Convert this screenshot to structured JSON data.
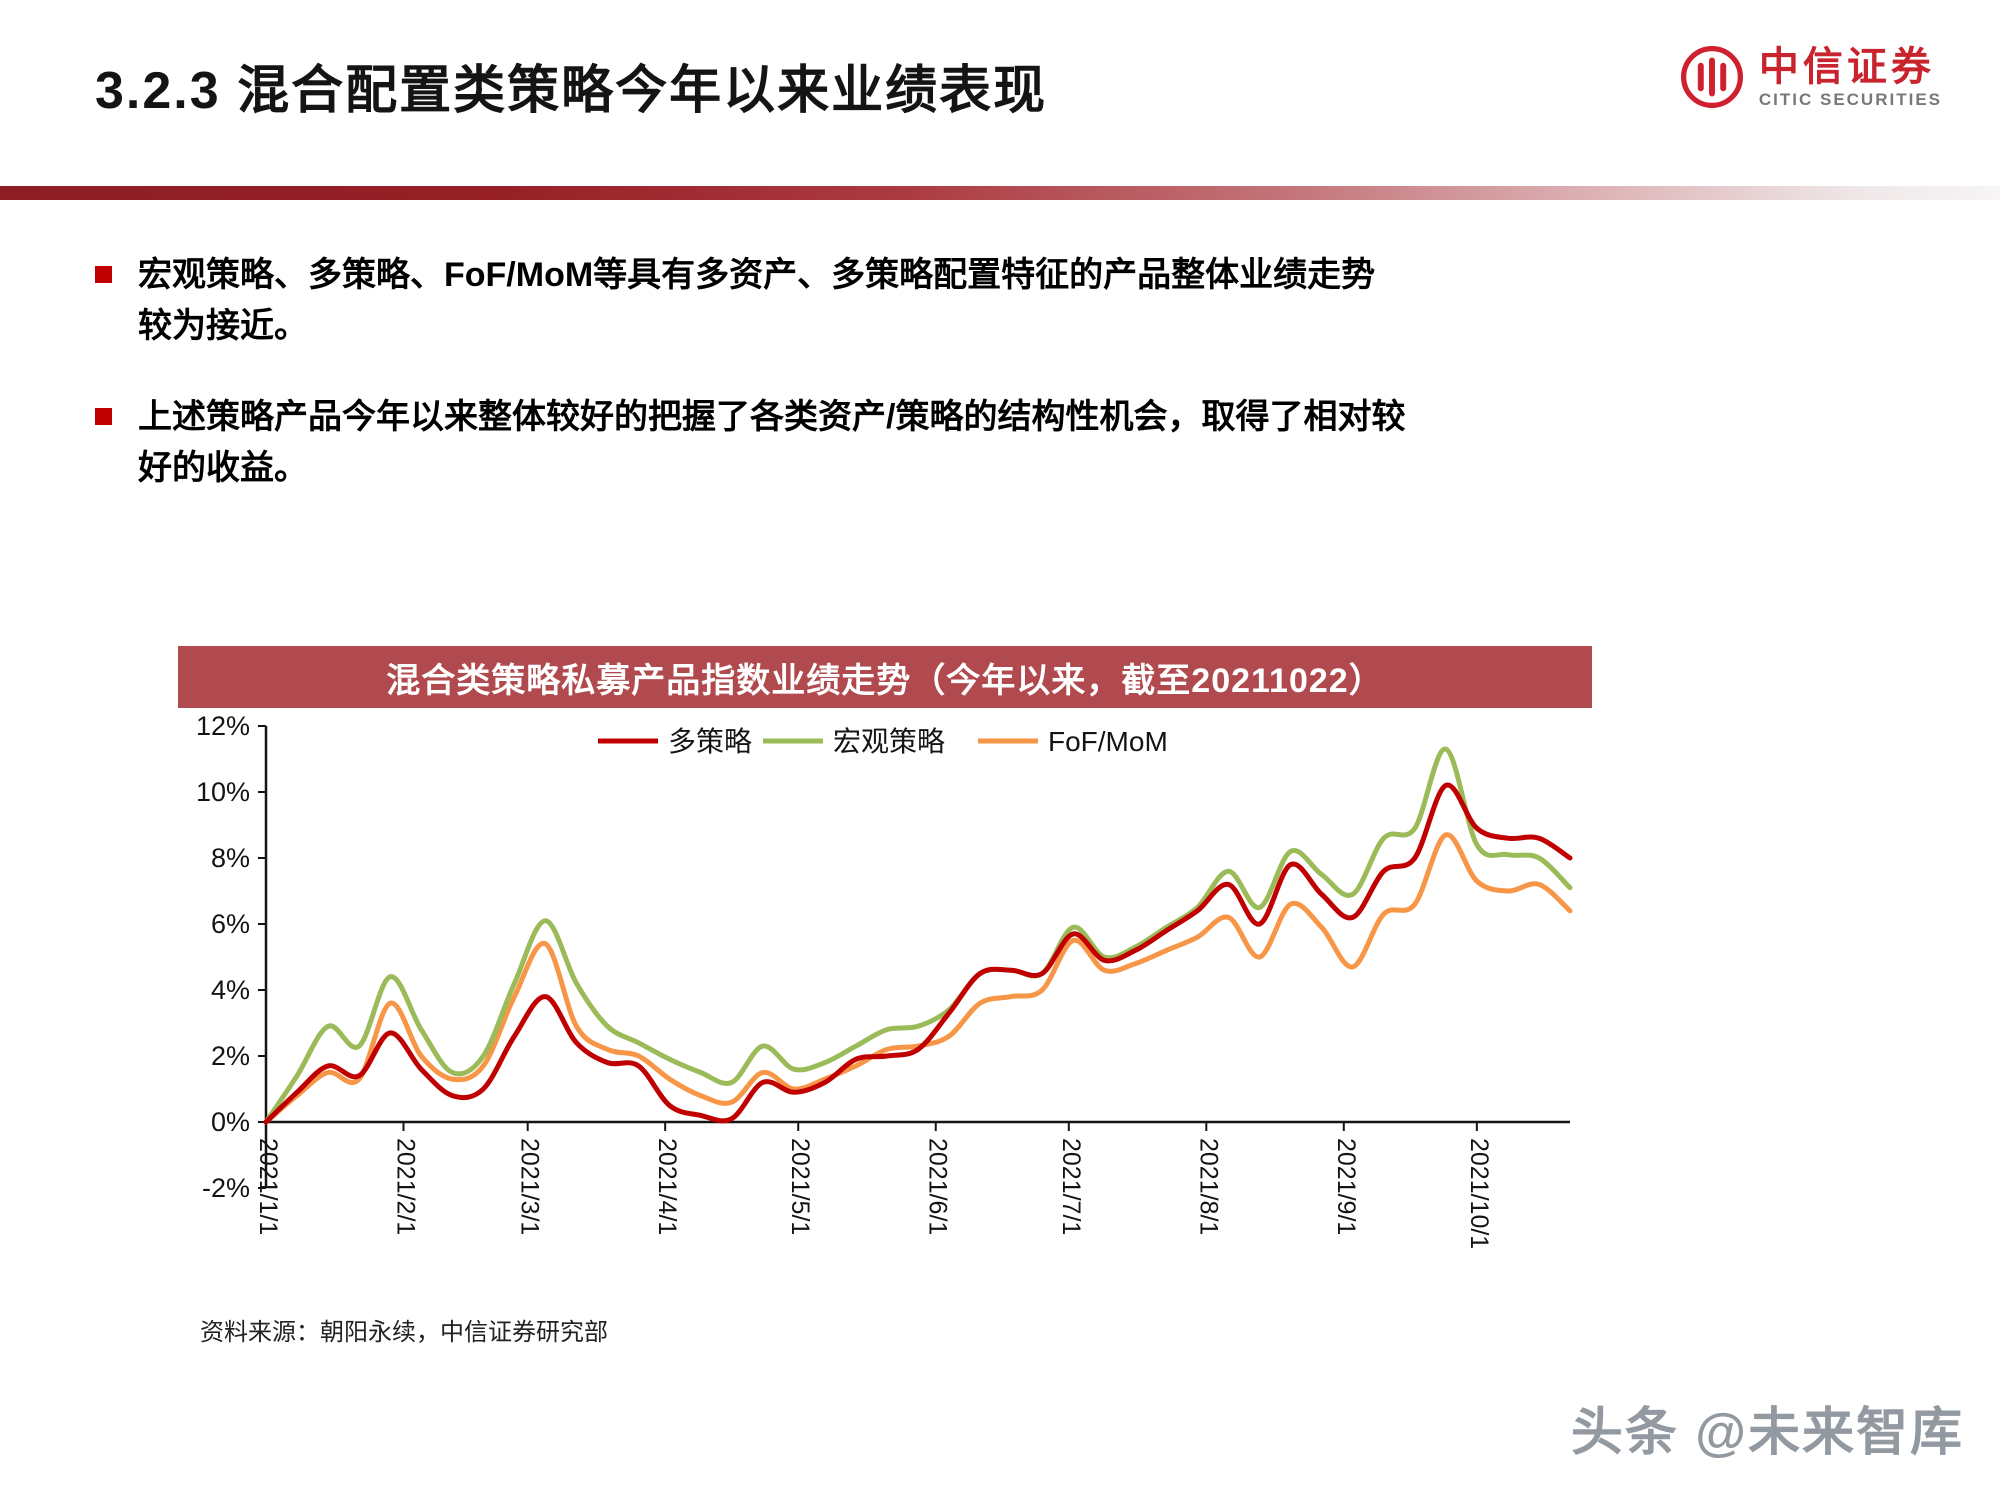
{
  "page": {
    "title": "3.2.3 混合配置类策略今年以来业绩表现",
    "logo_cn": "中信证券",
    "logo_en": "CITIC SECURITIES",
    "bullets": [
      "宏观策略、多策略、FoF/MoM等具有多资产、多策略配置特征的产品整体业绩走势较为接近。",
      "上述策略产品今年以来整体较好的把握了各类资产/策略的结构性机会，取得了相对较好的收益。"
    ],
    "source_note": "资料来源：朝阳永续，中信证券研究部",
    "watermark": "头条 @未来智库",
    "colors": {
      "accent_red": "#c00000",
      "divider_red": "#8e1e25",
      "chart_title_bg": "#b04a4e",
      "logo_red": "#c9242d"
    }
  },
  "chart_data": {
    "type": "line",
    "title": "混合类策略私募产品指数业绩走势（今年以来，截至20211022）",
    "xlabel": "",
    "ylabel": "",
    "ylim": [
      -2,
      12
    ],
    "y_ticks": [
      12,
      10,
      8,
      6,
      4,
      2,
      0,
      -2
    ],
    "y_tick_suffix": "%",
    "x_tick_labels": [
      "2021/1/1",
      "2021/2/1",
      "2021/3/1",
      "2021/4/1",
      "2021/5/1",
      "2021/6/1",
      "2021/7/1",
      "2021/8/1",
      "2021/9/1",
      "2021/10/1"
    ],
    "x_tick_days": [
      0,
      31,
      59,
      90,
      120,
      151,
      181,
      212,
      243,
      273
    ],
    "x_max_day": 294,
    "sample_interval_days": 7,
    "gridlines": false,
    "legend_position": "top-center",
    "series": [
      {
        "name": "多策略",
        "color": "#c00000",
        "values": [
          0,
          0.9,
          1.7,
          1.4,
          2.7,
          1.6,
          0.8,
          1.0,
          2.6,
          3.8,
          2.4,
          1.8,
          1.7,
          0.5,
          0.2,
          0.1,
          1.2,
          0.9,
          1.2,
          1.9,
          2.0,
          2.2,
          3.3,
          4.5,
          4.6,
          4.5,
          5.7,
          4.9,
          5.2,
          5.8,
          6.4,
          7.2,
          6.0,
          7.8,
          6.9,
          6.2,
          7.6,
          8.0,
          10.2,
          8.9,
          8.6,
          8.6,
          8.0
        ]
      },
      {
        "name": "宏观策略",
        "color": "#9bbb59",
        "values": [
          0,
          1.4,
          2.9,
          2.3,
          4.4,
          2.8,
          1.5,
          2.0,
          4.2,
          6.1,
          4.2,
          2.9,
          2.4,
          1.9,
          1.5,
          1.2,
          2.3,
          1.6,
          1.8,
          2.3,
          2.8,
          2.9,
          3.4,
          4.5,
          4.6,
          4.5,
          5.9,
          5.0,
          5.3,
          5.9,
          6.5,
          7.6,
          6.5,
          8.2,
          7.5,
          6.9,
          8.6,
          8.9,
          11.3,
          8.4,
          8.1,
          8.0,
          7.1
        ]
      },
      {
        "name": "FoF/MoM",
        "color": "#f79646",
        "values": [
          0,
          0.8,
          1.5,
          1.3,
          3.6,
          2.0,
          1.3,
          1.7,
          3.8,
          5.4,
          2.9,
          2.2,
          2.0,
          1.3,
          0.8,
          0.6,
          1.5,
          1.0,
          1.3,
          1.7,
          2.2,
          2.3,
          2.6,
          3.6,
          3.8,
          4.0,
          5.5,
          4.6,
          4.8,
          5.2,
          5.6,
          6.2,
          5.0,
          6.6,
          5.9,
          4.7,
          6.3,
          6.6,
          8.7,
          7.3,
          7.0,
          7.2,
          6.4
        ]
      }
    ]
  }
}
